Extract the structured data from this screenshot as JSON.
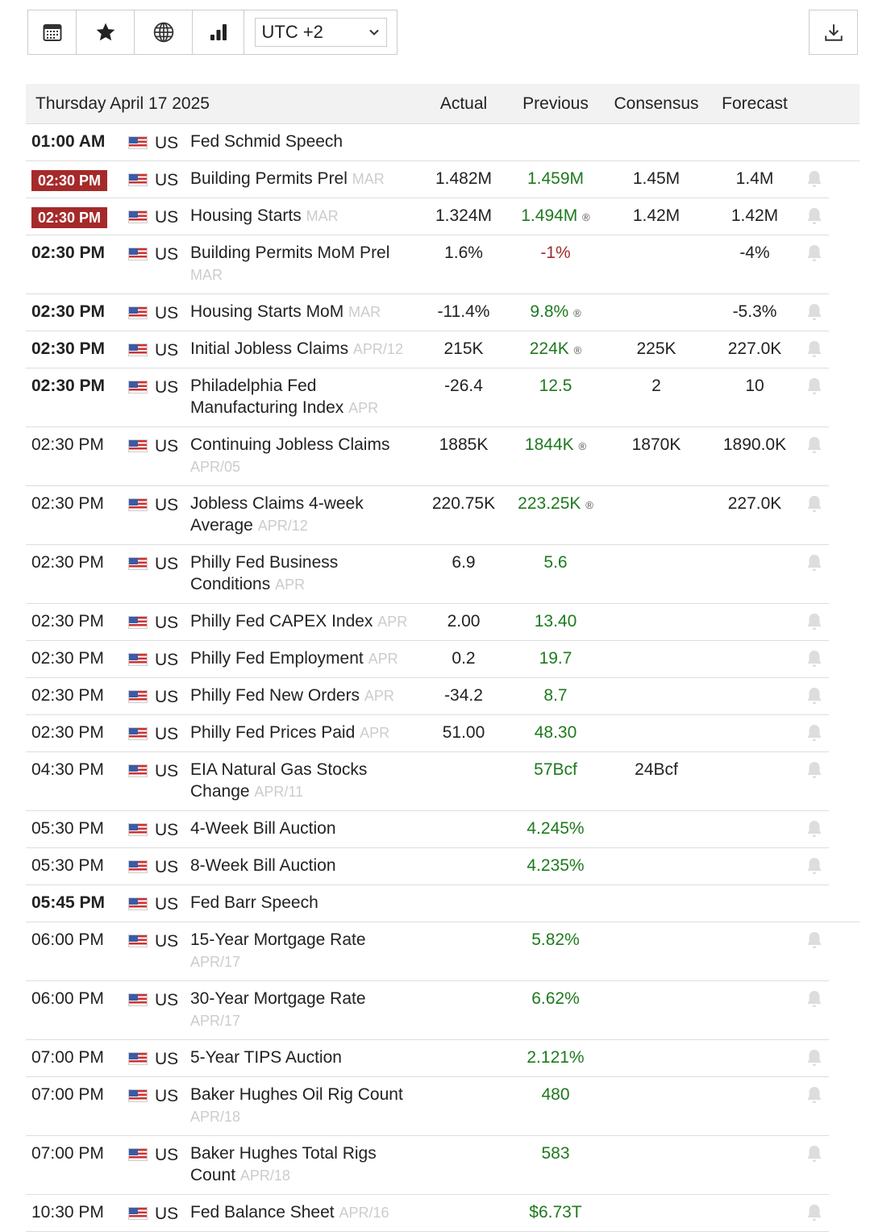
{
  "toolbar": {
    "timezone": "UTC +2",
    "icons": [
      "calendar-icon",
      "star-icon",
      "globe-icon",
      "bar-chart-icon"
    ],
    "download": "download-icon"
  },
  "header": {
    "date": "Thursday April 17 2025",
    "actual": "Actual",
    "previous": "Previous",
    "consensus": "Consensus",
    "forecast": "Forecast"
  },
  "colors": {
    "highlight": "#a52a2a",
    "positive": "#1e7a1e",
    "negative": "#a52a2a"
  },
  "rows": [
    {
      "time": "01:00 AM",
      "style": "bold",
      "country": "US",
      "name": "Fed Schmid Speech",
      "period": "",
      "actual": "",
      "previous": "",
      "pc": "",
      "rev": false,
      "consensus": "",
      "forecast": "",
      "bell": false
    },
    {
      "time": "02:30 PM",
      "style": "hl",
      "country": "US",
      "name": "Building Permits Prel",
      "period": "MAR",
      "actual": "1.482M",
      "previous": "1.459M",
      "pc": "g",
      "rev": false,
      "consensus": "1.45M",
      "forecast": "1.4M",
      "bell": true
    },
    {
      "time": "02:30 PM",
      "style": "hl",
      "country": "US",
      "name": "Housing Starts",
      "period": "MAR",
      "actual": "1.324M",
      "previous": "1.494M",
      "pc": "g",
      "rev": true,
      "consensus": "1.42M",
      "forecast": "1.42M",
      "bell": true
    },
    {
      "time": "02:30 PM",
      "style": "bold",
      "country": "US",
      "name": "Building Permits MoM Prel",
      "period": "MAR",
      "actual": "1.6%",
      "previous": "-1%",
      "pc": "r",
      "rev": false,
      "consensus": "",
      "forecast": "-4%",
      "bell": true
    },
    {
      "time": "02:30 PM",
      "style": "bold",
      "country": "US",
      "name": "Housing Starts MoM",
      "period": "MAR",
      "actual": "-11.4%",
      "previous": "9.8%",
      "pc": "g",
      "rev": true,
      "consensus": "",
      "forecast": "-5.3%",
      "bell": true
    },
    {
      "time": "02:30 PM",
      "style": "bold",
      "country": "US",
      "name": "Initial Jobless Claims",
      "period": "APR/12",
      "actual": "215K",
      "previous": "224K",
      "pc": "g",
      "rev": true,
      "consensus": "225K",
      "forecast": "227.0K",
      "bell": true
    },
    {
      "time": "02:30 PM",
      "style": "bold",
      "country": "US",
      "name": "Philadelphia Fed Manufacturing Index",
      "period": "APR",
      "actual": "-26.4",
      "previous": "12.5",
      "pc": "g",
      "rev": false,
      "consensus": "2",
      "forecast": "10",
      "bell": true
    },
    {
      "time": "02:30 PM",
      "style": "",
      "country": "US",
      "name": "Continuing Jobless Claims",
      "period": "APR/05",
      "actual": "1885K",
      "previous": "1844K",
      "pc": "g",
      "rev": true,
      "consensus": "1870K",
      "forecast": "1890.0K",
      "bell": true
    },
    {
      "time": "02:30 PM",
      "style": "",
      "country": "US",
      "name": "Jobless Claims 4-week Average",
      "period": "APR/12",
      "actual": "220.75K",
      "previous": "223.25K",
      "pc": "g",
      "rev": true,
      "consensus": "",
      "forecast": "227.0K",
      "bell": true
    },
    {
      "time": "02:30 PM",
      "style": "",
      "country": "US",
      "name": "Philly Fed Business Conditions",
      "period": "APR",
      "actual": "6.9",
      "previous": "5.6",
      "pc": "g",
      "rev": false,
      "consensus": "",
      "forecast": "",
      "bell": true
    },
    {
      "time": "02:30 PM",
      "style": "",
      "country": "US",
      "name": "Philly Fed CAPEX Index",
      "period": "APR",
      "actual": "2.00",
      "previous": "13.40",
      "pc": "g",
      "rev": false,
      "consensus": "",
      "forecast": "",
      "bell": true
    },
    {
      "time": "02:30 PM",
      "style": "",
      "country": "US",
      "name": "Philly Fed Employment",
      "period": "APR",
      "actual": "0.2",
      "previous": "19.7",
      "pc": "g",
      "rev": false,
      "consensus": "",
      "forecast": "",
      "bell": true
    },
    {
      "time": "02:30 PM",
      "style": "",
      "country": "US",
      "name": "Philly Fed New Orders",
      "period": "APR",
      "actual": "-34.2",
      "previous": "8.7",
      "pc": "g",
      "rev": false,
      "consensus": "",
      "forecast": "",
      "bell": true
    },
    {
      "time": "02:30 PM",
      "style": "",
      "country": "US",
      "name": "Philly Fed Prices Paid",
      "period": "APR",
      "actual": "51.00",
      "previous": "48.30",
      "pc": "g",
      "rev": false,
      "consensus": "",
      "forecast": "",
      "bell": true
    },
    {
      "time": "04:30 PM",
      "style": "",
      "country": "US",
      "name": "EIA Natural Gas Stocks Change",
      "period": "APR/11",
      "actual": "",
      "previous": "57Bcf",
      "pc": "g",
      "rev": false,
      "consensus": "24Bcf",
      "forecast": "",
      "bell": true
    },
    {
      "time": "05:30 PM",
      "style": "",
      "country": "US",
      "name": "4-Week Bill Auction",
      "period": "",
      "actual": "",
      "previous": "4.245%",
      "pc": "g",
      "rev": false,
      "consensus": "",
      "forecast": "",
      "bell": true
    },
    {
      "time": "05:30 PM",
      "style": "",
      "country": "US",
      "name": "8-Week Bill Auction",
      "period": "",
      "actual": "",
      "previous": "4.235%",
      "pc": "g",
      "rev": false,
      "consensus": "",
      "forecast": "",
      "bell": true
    },
    {
      "time": "05:45 PM",
      "style": "bold",
      "country": "US",
      "name": "Fed Barr Speech",
      "period": "",
      "actual": "",
      "previous": "",
      "pc": "",
      "rev": false,
      "consensus": "",
      "forecast": "",
      "bell": false
    },
    {
      "time": "06:00 PM",
      "style": "",
      "country": "US",
      "name": "15-Year Mortgage Rate",
      "period": "APR/17",
      "wrap": true,
      "actual": "",
      "previous": "5.82%",
      "pc": "g",
      "rev": false,
      "consensus": "",
      "forecast": "",
      "bell": true
    },
    {
      "time": "06:00 PM",
      "style": "",
      "country": "US",
      "name": "30-Year Mortgage Rate",
      "period": "APR/17",
      "wrap": true,
      "actual": "",
      "previous": "6.62%",
      "pc": "g",
      "rev": false,
      "consensus": "",
      "forecast": "",
      "bell": true
    },
    {
      "time": "07:00 PM",
      "style": "",
      "country": "US",
      "name": "5-Year TIPS Auction",
      "period": "",
      "actual": "",
      "previous": "2.121%",
      "pc": "g",
      "rev": false,
      "consensus": "",
      "forecast": "",
      "bell": true
    },
    {
      "time": "07:00 PM",
      "style": "",
      "country": "US",
      "name": "Baker Hughes Oil Rig Count",
      "period": "APR/18",
      "wrap": true,
      "actual": "",
      "previous": "480",
      "pc": "g",
      "rev": false,
      "consensus": "",
      "forecast": "",
      "bell": true
    },
    {
      "time": "07:00 PM",
      "style": "",
      "country": "US",
      "name": "Baker Hughes Total Rigs Count",
      "period": "APR/18",
      "actual": "",
      "previous": "583",
      "pc": "g",
      "rev": false,
      "consensus": "",
      "forecast": "",
      "bell": true
    },
    {
      "time": "10:30 PM",
      "style": "",
      "country": "US",
      "name": "Fed Balance Sheet",
      "period": "APR/16",
      "actual": "",
      "previous": "$6.73T",
      "pc": "g",
      "rev": false,
      "consensus": "",
      "forecast": "",
      "bell": true
    }
  ],
  "revised_mark": "®"
}
